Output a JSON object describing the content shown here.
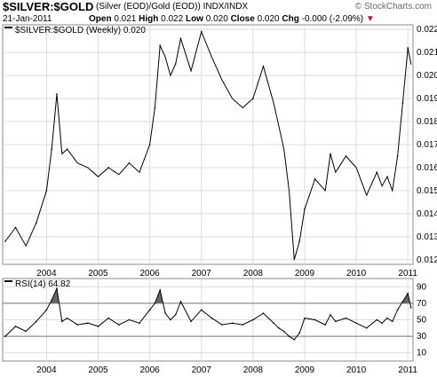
{
  "header": {
    "symbol": "$SILVER:$GOLD",
    "description": "(Silver (EOD)/Gold (EOD))",
    "exchange": "INDX/INDX",
    "brand": "© StockCharts.com",
    "date": "21-Jan-2011",
    "open_label": "Open",
    "open": "0.021",
    "high_label": "High",
    "high": "0.022",
    "low_label": "Low",
    "low": "0.020",
    "close_label": "Close",
    "close": "0.020",
    "chg_label": "Chg",
    "chg": "-0.000 (-2.09%)"
  },
  "chart_data": [
    {
      "type": "line",
      "legend": "$SILVER:$GOLD (Weekly) 0.020",
      "x_labels": [
        "2004",
        "2005",
        "2006",
        "2007",
        "2008",
        "2009",
        "2010",
        "2011"
      ],
      "y_ticks": [
        0.012,
        0.013,
        0.014,
        0.015,
        0.016,
        0.017,
        0.018,
        0.019,
        0.02,
        0.021,
        0.022
      ],
      "ylim": [
        0.0118,
        0.0222
      ],
      "x": [
        2003.2,
        2003.4,
        2003.6,
        2003.8,
        2004.0,
        2004.1,
        2004.2,
        2004.3,
        2004.4,
        2004.6,
        2004.8,
        2005.0,
        2005.2,
        2005.4,
        2005.6,
        2005.8,
        2006.0,
        2006.1,
        2006.2,
        2006.3,
        2006.4,
        2006.5,
        2006.6,
        2006.8,
        2007.0,
        2007.2,
        2007.4,
        2007.6,
        2007.8,
        2008.0,
        2008.2,
        2008.4,
        2008.5,
        2008.6,
        2008.7,
        2008.8,
        2008.9,
        2009.0,
        2009.2,
        2009.4,
        2009.5,
        2009.6,
        2009.8,
        2010.0,
        2010.2,
        2010.4,
        2010.5,
        2010.6,
        2010.7,
        2010.8,
        2010.9,
        2011.0,
        2011.06
      ],
      "y": [
        0.0128,
        0.0134,
        0.0126,
        0.0136,
        0.015,
        0.0168,
        0.0192,
        0.0166,
        0.0168,
        0.0162,
        0.016,
        0.0156,
        0.016,
        0.0157,
        0.0162,
        0.0158,
        0.017,
        0.0186,
        0.0213,
        0.0208,
        0.02,
        0.0205,
        0.0216,
        0.0202,
        0.0219,
        0.0208,
        0.0198,
        0.019,
        0.0186,
        0.019,
        0.0204,
        0.0188,
        0.0178,
        0.0168,
        0.015,
        0.012,
        0.0128,
        0.0142,
        0.0155,
        0.015,
        0.0166,
        0.0158,
        0.0165,
        0.016,
        0.0148,
        0.0158,
        0.0152,
        0.0156,
        0.015,
        0.0165,
        0.0188,
        0.0212,
        0.0205
      ]
    },
    {
      "type": "line",
      "legend": "RSI(14) 64.82",
      "x_labels": [
        "2004",
        "2005",
        "2006",
        "2007",
        "2008",
        "2009",
        "2010",
        "2011"
      ],
      "y_ticks": [
        10,
        30,
        50,
        70,
        90
      ],
      "ylim": [
        0,
        100
      ],
      "reference_lines": [
        30,
        70
      ],
      "x": [
        2003.2,
        2003.4,
        2003.6,
        2003.8,
        2004.0,
        2004.1,
        2004.2,
        2004.3,
        2004.4,
        2004.6,
        2004.8,
        2005.0,
        2005.2,
        2005.4,
        2005.6,
        2005.8,
        2006.0,
        2006.1,
        2006.2,
        2006.3,
        2006.4,
        2006.5,
        2006.6,
        2006.8,
        2007.0,
        2007.2,
        2007.4,
        2007.6,
        2007.8,
        2008.0,
        2008.2,
        2008.4,
        2008.5,
        2008.6,
        2008.7,
        2008.8,
        2008.9,
        2009.0,
        2009.2,
        2009.4,
        2009.5,
        2009.6,
        2009.8,
        2010.0,
        2010.2,
        2010.4,
        2010.5,
        2010.6,
        2010.7,
        2010.8,
        2010.9,
        2011.0,
        2011.06
      ],
      "y": [
        30,
        42,
        36,
        48,
        62,
        74,
        88,
        48,
        52,
        44,
        46,
        42,
        52,
        44,
        50,
        46,
        62,
        70,
        86,
        58,
        50,
        56,
        72,
        48,
        62,
        52,
        44,
        46,
        44,
        50,
        58,
        46,
        40,
        36,
        30,
        26,
        34,
        52,
        50,
        44,
        56,
        48,
        52,
        46,
        40,
        50,
        46,
        52,
        48,
        62,
        72,
        82,
        64.82
      ]
    }
  ]
}
